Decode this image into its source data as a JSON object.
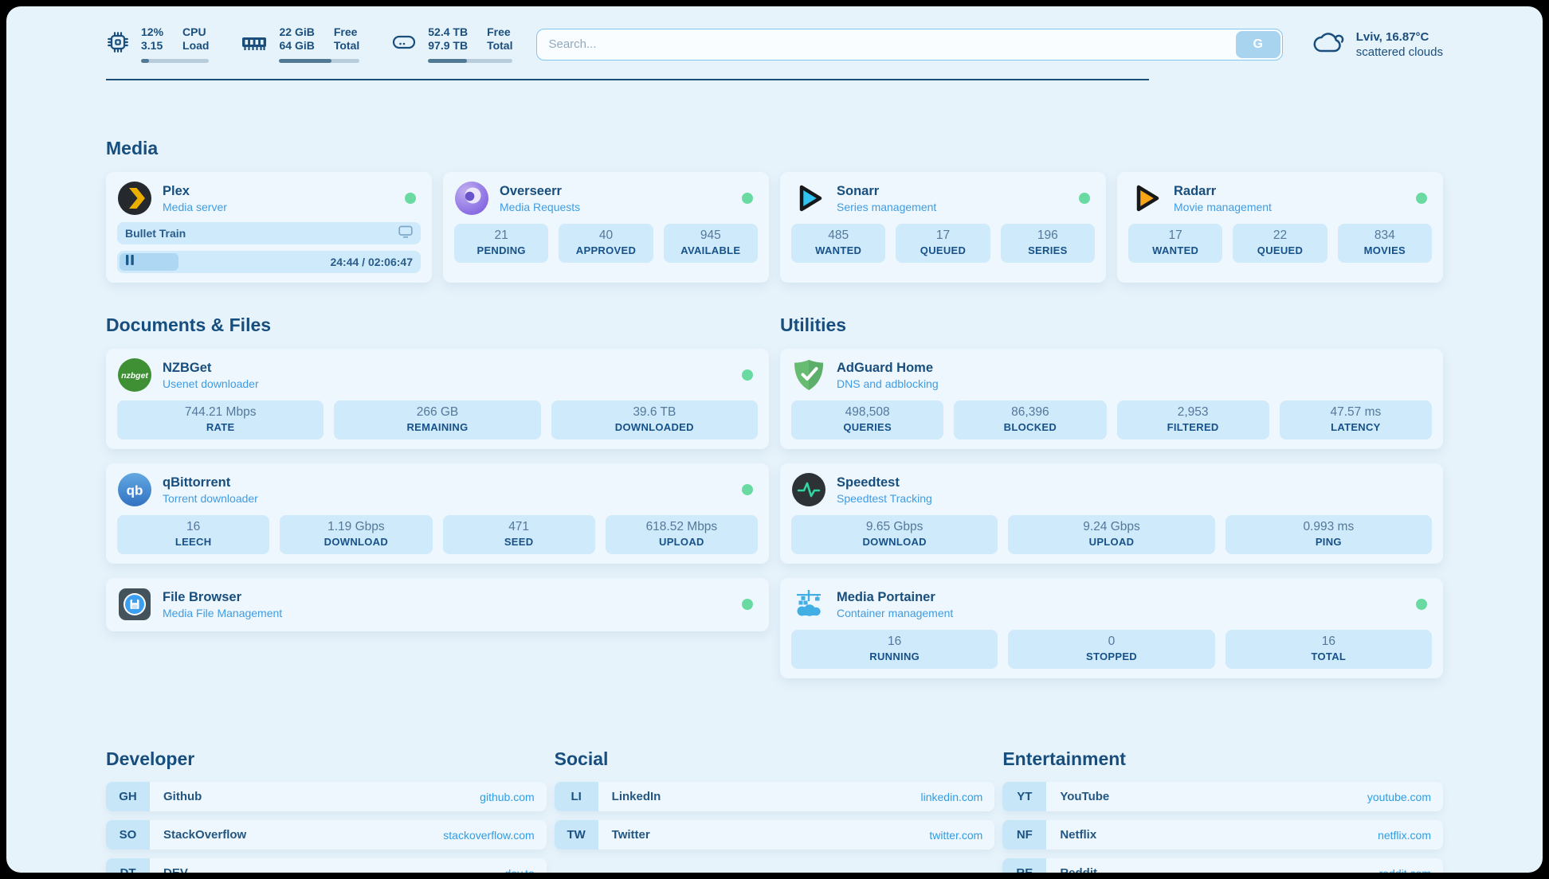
{
  "colors": {
    "background": "#e7f3fb",
    "card": "#eef7fd",
    "stat_box": "#cfeafa",
    "navy": "#174e7e",
    "subtitle_blue": "#3f9ce2",
    "link_blue": "#2f9de5",
    "online_green": "#69dba2"
  },
  "header": {
    "metrics": [
      {
        "icon": "cpu-icon",
        "line1": "12%",
        "line2": "3.15",
        "label1": "CPU",
        "label2": "Load",
        "progress": 12
      },
      {
        "icon": "ram-icon",
        "line1": "22 GiB",
        "line2": "64 GiB",
        "label1": "Free",
        "label2": "Total",
        "progress": 65
      },
      {
        "icon": "disk-icon",
        "line1": "52.4 TB",
        "line2": "97.9 TB",
        "label1": "Free",
        "label2": "Total",
        "progress": 46
      }
    ],
    "search": {
      "placeholder": "Search...",
      "button_label": "G"
    },
    "weather": {
      "line1": "Lviv, 16.87°C",
      "line2": "scattered clouds"
    }
  },
  "media_group": {
    "title": "Media",
    "plex": {
      "name": "Plex",
      "subtitle": "Media server",
      "now_playing": "Bullet Train",
      "progress": 19.5,
      "time": "24:44 / 02:06:47"
    },
    "overseerr": {
      "name": "Overseerr",
      "subtitle": "Media Requests",
      "stats": [
        {
          "value": "21",
          "label": "PENDING"
        },
        {
          "value": "40",
          "label": "APPROVED"
        },
        {
          "value": "945",
          "label": "AVAILABLE"
        }
      ]
    },
    "sonarr": {
      "name": "Sonarr",
      "subtitle": "Series management",
      "stats": [
        {
          "value": "485",
          "label": "WANTED"
        },
        {
          "value": "17",
          "label": "QUEUED"
        },
        {
          "value": "196",
          "label": "SERIES"
        }
      ]
    },
    "radarr": {
      "name": "Radarr",
      "subtitle": "Movie management",
      "stats": [
        {
          "value": "17",
          "label": "WANTED"
        },
        {
          "value": "22",
          "label": "QUEUED"
        },
        {
          "value": "834",
          "label": "MOVIES"
        }
      ]
    }
  },
  "documents_group": {
    "title": "Documents & Files",
    "nzbget": {
      "name": "NZBGet",
      "subtitle": "Usenet downloader",
      "stats": [
        {
          "value": "744.21 Mbps",
          "label": "RATE"
        },
        {
          "value": "266 GB",
          "label": "REMAINING"
        },
        {
          "value": "39.6 TB",
          "label": "DOWNLOADED"
        }
      ]
    },
    "qbittorrent": {
      "name": "qBittorrent",
      "subtitle": "Torrent downloader",
      "stats": [
        {
          "value": "16",
          "label": "LEECH"
        },
        {
          "value": "1.19 Gbps",
          "label": "DOWNLOAD"
        },
        {
          "value": "471",
          "label": "SEED"
        },
        {
          "value": "618.52 Mbps",
          "label": "UPLOAD"
        }
      ]
    },
    "filebrowser": {
      "name": "File Browser",
      "subtitle": "Media File Management"
    }
  },
  "utilities_group": {
    "title": "Utilities",
    "adguard": {
      "name": "AdGuard Home",
      "subtitle": "DNS and adblocking",
      "stats": [
        {
          "value": "498,508",
          "label": "QUERIES"
        },
        {
          "value": "86,396",
          "label": "BLOCKED"
        },
        {
          "value": "2,953",
          "label": "FILTERED"
        },
        {
          "value": "47.57 ms",
          "label": "LATENCY"
        }
      ]
    },
    "speedtest": {
      "name": "Speedtest",
      "subtitle": "Speedtest Tracking",
      "stats": [
        {
          "value": "9.65 Gbps",
          "label": "DOWNLOAD"
        },
        {
          "value": "9.24 Gbps",
          "label": "UPLOAD"
        },
        {
          "value": "0.993 ms",
          "label": "PING"
        }
      ]
    },
    "portainer": {
      "name": "Media Portainer",
      "subtitle": "Container management",
      "stats": [
        {
          "value": "16",
          "label": "RUNNING"
        },
        {
          "value": "0",
          "label": "STOPPED"
        },
        {
          "value": "16",
          "label": "TOTAL"
        }
      ]
    }
  },
  "bookmarks": [
    {
      "title": "Developer",
      "links": [
        {
          "abbr": "GH",
          "name": "Github",
          "url": "github.com"
        },
        {
          "abbr": "SO",
          "name": "StackOverflow",
          "url": "stackoverflow.com"
        },
        {
          "abbr": "DT",
          "name": "DEV",
          "url": "dev.to"
        }
      ]
    },
    {
      "title": "Social",
      "links": [
        {
          "abbr": "LI",
          "name": "LinkedIn",
          "url": "linkedin.com"
        },
        {
          "abbr": "TW",
          "name": "Twitter",
          "url": "twitter.com"
        }
      ]
    },
    {
      "title": "Entertainment",
      "links": [
        {
          "abbr": "YT",
          "name": "YouTube",
          "url": "youtube.com"
        },
        {
          "abbr": "NF",
          "name": "Netflix",
          "url": "netflix.com"
        },
        {
          "abbr": "RE",
          "name": "Reddit",
          "url": "reddit.com"
        }
      ]
    }
  ]
}
